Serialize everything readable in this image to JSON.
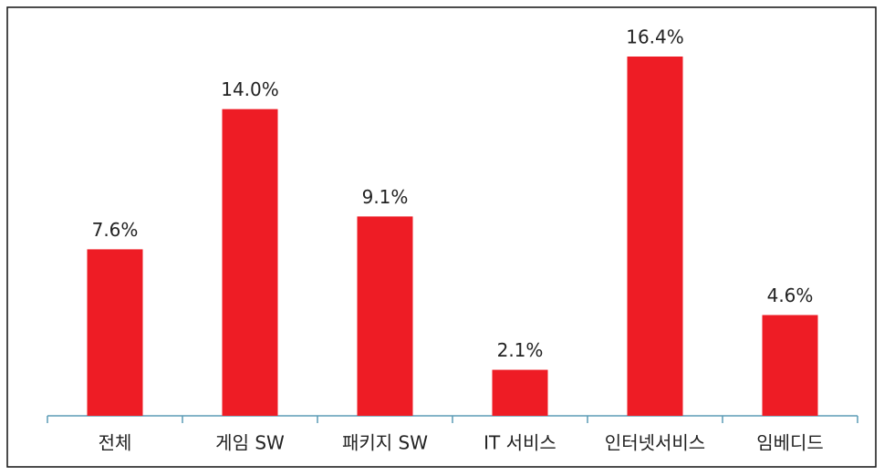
{
  "chart_data": {
    "type": "bar",
    "categories": [
      "전체",
      "게임 SW",
      "패키지 SW",
      "IT 서비스",
      "인터넷서비스",
      "임베디드"
    ],
    "values": [
      7.6,
      14.0,
      9.1,
      2.1,
      16.4,
      4.6
    ],
    "value_labels": [
      "7.6%",
      "14.0%",
      "9.1%",
      "2.1%",
      "16.4%",
      "4.6%"
    ],
    "color": "#ee1c25"
  }
}
